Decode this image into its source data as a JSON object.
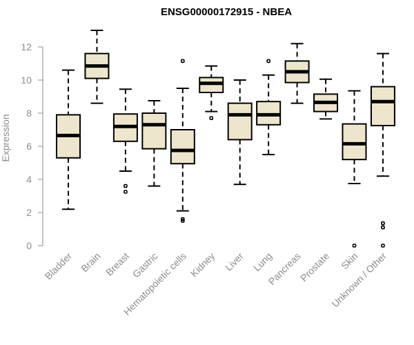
{
  "chart_data": {
    "type": "boxplot",
    "title": "ENSG00000172915 - NBEA",
    "xlabel": "",
    "ylabel": "Expression",
    "ylim": [
      0,
      12
    ],
    "yticks": [
      0,
      2,
      4,
      6,
      8,
      10,
      12
    ],
    "categories": [
      "Bladder",
      "Brain",
      "Breast",
      "Gastric",
      "Hematopoietic cells",
      "Kidney",
      "Liver",
      "Lung",
      "Pancreas",
      "Prostate",
      "Skin",
      "Unknown / Other"
    ],
    "boxes": [
      {
        "name": "Bladder",
        "min": 2.2,
        "q1": 5.3,
        "median": 6.65,
        "q3": 7.9,
        "max": 10.6,
        "outliers": []
      },
      {
        "name": "Brain",
        "min": 8.6,
        "q1": 10.1,
        "median": 10.85,
        "q3": 11.6,
        "max": 13.0,
        "outliers": []
      },
      {
        "name": "Breast",
        "min": 4.5,
        "q1": 6.3,
        "median": 7.2,
        "q3": 7.95,
        "max": 9.45,
        "outliers": [
          3.6,
          3.25
        ]
      },
      {
        "name": "Gastric",
        "min": 3.6,
        "q1": 5.85,
        "median": 7.3,
        "q3": 8.0,
        "max": 8.75,
        "outliers": []
      },
      {
        "name": "Hematopoietic cells",
        "min": 2.1,
        "q1": 4.95,
        "median": 5.75,
        "q3": 7.0,
        "max": 9.5,
        "outliers": [
          11.15,
          1.6,
          1.5
        ]
      },
      {
        "name": "Kidney",
        "min": 8.1,
        "q1": 9.25,
        "median": 9.8,
        "q3": 10.15,
        "max": 10.85,
        "outliers": [
          7.7
        ]
      },
      {
        "name": "Liver",
        "min": 3.7,
        "q1": 6.4,
        "median": 7.9,
        "q3": 8.6,
        "max": 10.0,
        "outliers": []
      },
      {
        "name": "Lung",
        "min": 5.5,
        "q1": 7.3,
        "median": 7.9,
        "q3": 8.7,
        "max": 10.3,
        "outliers": [
          11.15
        ]
      },
      {
        "name": "Pancreas",
        "min": 8.6,
        "q1": 9.85,
        "median": 10.5,
        "q3": 11.15,
        "max": 12.2,
        "outliers": []
      },
      {
        "name": "Prostate",
        "min": 7.65,
        "q1": 8.1,
        "median": 8.65,
        "q3": 9.15,
        "max": 10.05,
        "outliers": []
      },
      {
        "name": "Skin",
        "min": 3.75,
        "q1": 5.2,
        "median": 6.15,
        "q3": 7.35,
        "max": 9.35,
        "outliers": [
          0.0
        ]
      },
      {
        "name": "Unknown / Other",
        "min": 4.2,
        "q1": 7.25,
        "median": 8.7,
        "q3": 9.6,
        "max": 11.6,
        "outliers": [
          1.35,
          1.1,
          0.0
        ]
      }
    ],
    "colors": {
      "box_fill": "#ede6cc",
      "stroke": "#000000",
      "axis_text": "#8c8c8c"
    }
  }
}
